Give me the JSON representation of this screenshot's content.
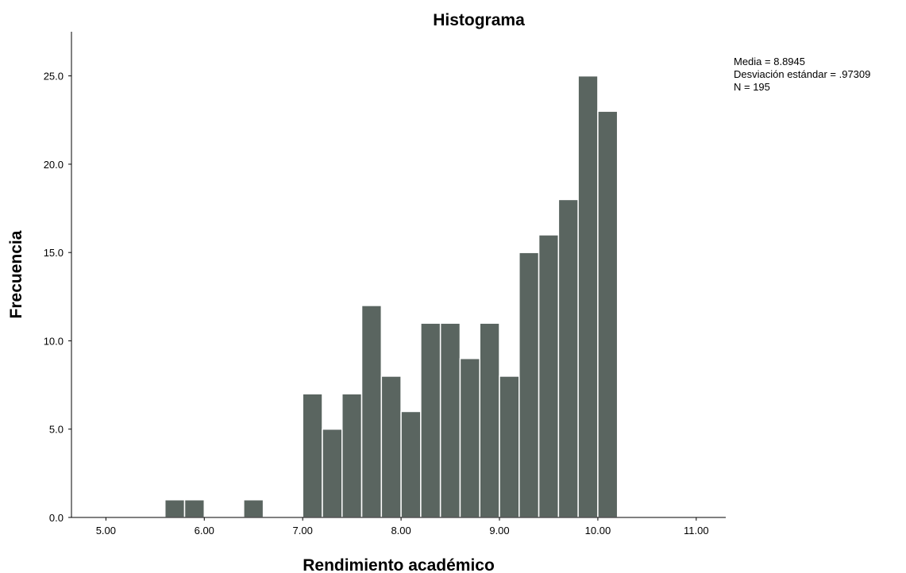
{
  "chart_data": {
    "type": "bar",
    "title": "Histograma",
    "xlabel": "Rendimiento académico",
    "ylabel": "Frecuencia",
    "xlim": [
      4.65,
      11.3
    ],
    "ylim": [
      0,
      27.5
    ],
    "x_ticks": [
      5,
      6,
      7,
      8,
      9,
      10,
      11
    ],
    "x_tick_labels": [
      "5.00",
      "6.00",
      "7.00",
      "8.00",
      "9.00",
      "10.00",
      "11.00"
    ],
    "y_ticks": [
      0,
      5,
      10,
      15,
      20,
      25
    ],
    "y_tick_labels": [
      "0.0",
      "5.0",
      "10.0",
      "15.0",
      "20.0",
      "25.0"
    ],
    "bin_width": 0.2,
    "bins": [
      {
        "start": 5.6,
        "end": 5.8,
        "count": 1
      },
      {
        "start": 5.8,
        "end": 6.0,
        "count": 1
      },
      {
        "start": 6.4,
        "end": 6.6,
        "count": 1
      },
      {
        "start": 7.0,
        "end": 7.2,
        "count": 7
      },
      {
        "start": 7.2,
        "end": 7.4,
        "count": 5
      },
      {
        "start": 7.4,
        "end": 7.6,
        "count": 7
      },
      {
        "start": 7.6,
        "end": 7.8,
        "count": 12
      },
      {
        "start": 7.8,
        "end": 8.0,
        "count": 8
      },
      {
        "start": 8.0,
        "end": 8.2,
        "count": 6
      },
      {
        "start": 8.2,
        "end": 8.4,
        "count": 11
      },
      {
        "start": 8.4,
        "end": 8.6,
        "count": 11
      },
      {
        "start": 8.6,
        "end": 8.8,
        "count": 9
      },
      {
        "start": 8.8,
        "end": 9.0,
        "count": 11
      },
      {
        "start": 9.0,
        "end": 9.2,
        "count": 8
      },
      {
        "start": 9.2,
        "end": 9.4,
        "count": 15
      },
      {
        "start": 9.4,
        "end": 9.6,
        "count": 16
      },
      {
        "start": 9.6,
        "end": 9.8,
        "count": 18
      },
      {
        "start": 9.8,
        "end": 10.0,
        "count": 25
      },
      {
        "start": 10.0,
        "end": 10.2,
        "count": 23
      }
    ],
    "bar_color": "#5a6560",
    "bar_edge_color": "#ffffff",
    "grid": false,
    "stats": {
      "mean": "Media = 8.8945",
      "std": "Desviación estándar = .97309",
      "n": "N = 195"
    }
  }
}
